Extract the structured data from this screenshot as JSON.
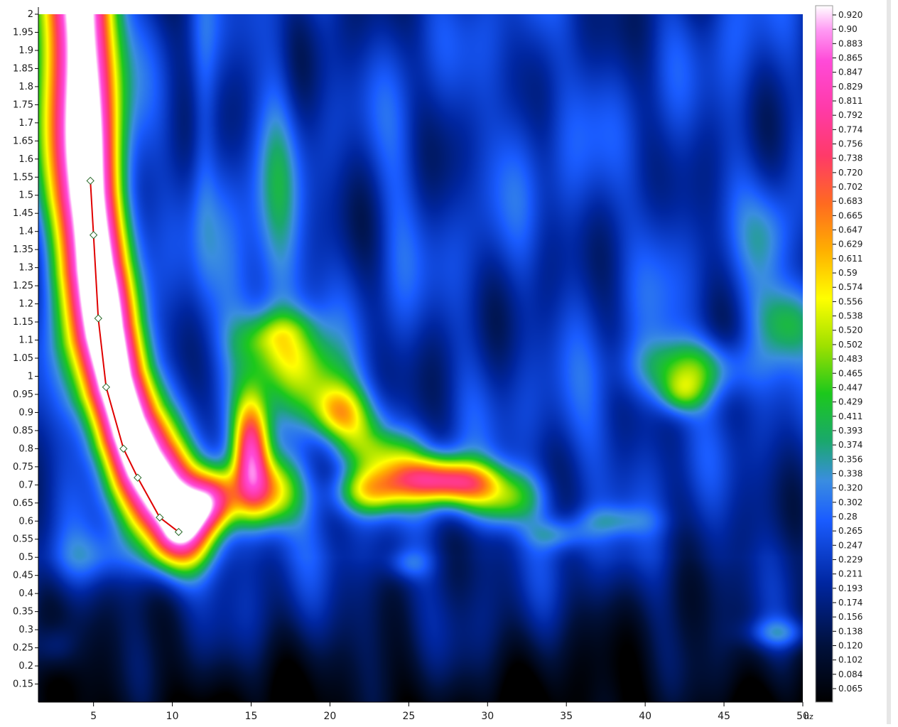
{
  "chart_data": {
    "type": "heatmap",
    "title": "",
    "xlabel": "",
    "ylabel": "",
    "x_unit_label": "hz",
    "xlim": [
      1.5,
      50
    ],
    "ylim": [
      0.1,
      2.0
    ],
    "x_ticks": [
      5,
      10,
      15,
      20,
      25,
      30,
      35,
      40,
      45,
      50
    ],
    "x_tick_labels": [
      "5",
      "10",
      "15",
      "20",
      "25",
      "30",
      "35",
      "40",
      "45",
      "50"
    ],
    "y_ticks": [
      2,
      1.95,
      1.9,
      1.85,
      1.8,
      1.75,
      1.7,
      1.65,
      1.6,
      1.55,
      1.5,
      1.45,
      1.4,
      1.35,
      1.3,
      1.25,
      1.2,
      1.15,
      1.1,
      1.05,
      1,
      0.95,
      0.9,
      0.85,
      0.8,
      0.75,
      0.7,
      0.65,
      0.6,
      0.55,
      0.5,
      0.45,
      0.4,
      0.35,
      0.3,
      0.25,
      0.2,
      0.15
    ],
    "y_tick_labels": [
      "2",
      "1.95",
      "1.9",
      "1.85",
      "1.8",
      "1.75",
      "1.7",
      "1.65",
      "1.6",
      "1.55",
      "1.5",
      "1.45",
      "1.4",
      "1.35",
      "1.3",
      "1.25",
      "1.2",
      "1.15",
      "1.1",
      "1.05",
      "1",
      "0.95",
      "0.9",
      "0.85",
      "0.8",
      "0.75",
      "0.7",
      "0.65",
      "0.6",
      "0.55",
      "0.5",
      "0.45",
      "0.4",
      "0.35",
      "0.3",
      "0.25",
      "0.2",
      "0.15"
    ],
    "colorbar": {
      "range": [
        0.05,
        0.93
      ],
      "labels": [
        "0.920",
        "0.90",
        "0.883",
        "0.865",
        "0.847",
        "0.829",
        "0.811",
        "0.792",
        "0.774",
        "0.756",
        "0.738",
        "0.720",
        "0.702",
        "0.683",
        "0.665",
        "0.647",
        "0.629",
        "0.611",
        "0.59",
        "0.574",
        "0.556",
        "0.538",
        "0.520",
        "0.502",
        "0.483",
        "0.465",
        "0.447",
        "0.429",
        "0.411",
        "0.393",
        "0.374",
        "0.356",
        "0.338",
        "0.320",
        "0.302",
        "0.28",
        "0.265",
        "0.247",
        "0.229",
        "0.211",
        "0.193",
        "0.174",
        "0.156",
        "0.138",
        "0.120",
        "0.102",
        "0.084",
        "0.065"
      ],
      "colors": [
        {
          "value": 0.05,
          "color": "#000000"
        },
        {
          "value": 0.12,
          "color": "#00103a"
        },
        {
          "value": 0.2,
          "color": "#0026a0"
        },
        {
          "value": 0.28,
          "color": "#1a5cff"
        },
        {
          "value": 0.33,
          "color": "#3a8de0"
        },
        {
          "value": 0.38,
          "color": "#1aa86c"
        },
        {
          "value": 0.44,
          "color": "#1cc81c"
        },
        {
          "value": 0.5,
          "color": "#9ee000"
        },
        {
          "value": 0.56,
          "color": "#ffff00"
        },
        {
          "value": 0.62,
          "color": "#ffb000"
        },
        {
          "value": 0.68,
          "color": "#ff6a20"
        },
        {
          "value": 0.74,
          "color": "#ff3a68"
        },
        {
          "value": 0.8,
          "color": "#ff3aa8"
        },
        {
          "value": 0.86,
          "color": "#ff4ad8"
        },
        {
          "value": 0.9,
          "color": "#ff9cf4"
        },
        {
          "value": 0.93,
          "color": "#ffffff"
        }
      ]
    },
    "picked_curve": {
      "color": "#e00000",
      "points": [
        {
          "x": 4.8,
          "y": 1.54
        },
        {
          "x": 5.0,
          "y": 1.39
        },
        {
          "x": 5.3,
          "y": 1.16
        },
        {
          "x": 5.8,
          "y": 0.97
        },
        {
          "x": 6.9,
          "y": 0.8
        },
        {
          "x": 7.8,
          "y": 0.72
        },
        {
          "x": 9.2,
          "y": 0.61
        },
        {
          "x": 10.4,
          "y": 0.57
        }
      ]
    },
    "energy_features": [
      {
        "kind": "ridge",
        "points": [
          [
            4.0,
            2.0
          ],
          [
            4.3,
            1.75
          ],
          [
            4.6,
            1.5
          ],
          [
            5.0,
            1.3
          ],
          [
            5.6,
            1.12
          ],
          [
            6.3,
            0.98
          ],
          [
            7.2,
            0.86
          ],
          [
            8.2,
            0.76
          ],
          [
            9.3,
            0.67
          ],
          [
            10.3,
            0.6
          ]
        ],
        "amplitude": 0.88,
        "width": 1.6,
        "height": 0.09
      },
      {
        "kind": "ridge",
        "points": [
          [
            4.6,
            1.6
          ],
          [
            5.2,
            1.25
          ],
          [
            6.2,
            1.0
          ],
          [
            7.4,
            0.85
          ]
        ],
        "amplitude": 0.04,
        "width": 0.9,
        "height": 0.1
      },
      {
        "kind": "blob",
        "x": 12.6,
        "y": 0.66,
        "amplitude": 0.45,
        "sx": 1.1,
        "sy": 0.06
      },
      {
        "kind": "blob",
        "x": 15.0,
        "y": 0.8,
        "amplitude": 0.5,
        "sx": 0.8,
        "sy": 0.1
      },
      {
        "kind": "blob",
        "x": 16.0,
        "y": 0.68,
        "amplitude": 0.42,
        "sx": 1.5,
        "sy": 0.07
      },
      {
        "kind": "blob",
        "x": 15.6,
        "y": 1.25,
        "amplitude": 0.12,
        "sx": 2.5,
        "sy": 0.28
      },
      {
        "kind": "ridge",
        "points": [
          [
            17.0,
            1.1
          ],
          [
            19.5,
            0.95
          ],
          [
            22.0,
            0.82
          ],
          [
            25.0,
            0.74
          ],
          [
            28.0,
            0.7
          ],
          [
            31.0,
            0.66
          ]
        ],
        "amplitude": 0.28,
        "width": 1.8,
        "height": 0.055
      },
      {
        "kind": "blob",
        "x": 22.5,
        "y": 0.68,
        "amplitude": 0.3,
        "sx": 1.6,
        "sy": 0.045
      },
      {
        "kind": "blob",
        "x": 27.5,
        "y": 0.71,
        "amplitude": 0.32,
        "sx": 2.2,
        "sy": 0.04
      },
      {
        "kind": "blob",
        "x": 20.5,
        "y": 0.9,
        "amplitude": 0.18,
        "sx": 1.1,
        "sy": 0.05
      },
      {
        "kind": "blob",
        "x": 43.0,
        "y": 1.02,
        "amplitude": 0.25,
        "sx": 2.6,
        "sy": 0.06
      },
      {
        "kind": "blob",
        "x": 42.3,
        "y": 0.95,
        "amplitude": 0.18,
        "sx": 1.0,
        "sy": 0.04
      },
      {
        "kind": "blob",
        "x": 49.0,
        "y": 1.15,
        "amplitude": 0.22,
        "sx": 1.6,
        "sy": 0.08
      },
      {
        "kind": "blob",
        "x": 48.0,
        "y": 1.38,
        "amplitude": 0.12,
        "sx": 1.2,
        "sy": 0.1
      },
      {
        "kind": "blob",
        "x": 34.5,
        "y": 0.56,
        "amplitude": 0.13,
        "sx": 1.4,
        "sy": 0.03
      },
      {
        "kind": "blob",
        "x": 38.0,
        "y": 0.6,
        "amplitude": 0.1,
        "sx": 2.0,
        "sy": 0.03
      },
      {
        "kind": "blob",
        "x": 25.0,
        "y": 0.48,
        "amplitude": 0.1,
        "sx": 1.0,
        "sy": 0.03
      },
      {
        "kind": "blob",
        "x": 48.5,
        "y": 0.29,
        "amplitude": 0.14,
        "sx": 1.5,
        "sy": 0.03
      },
      {
        "kind": "blob",
        "x": 2.6,
        "y": 0.25,
        "amplitude": 0.12,
        "sx": 1.0,
        "sy": 0.05
      },
      {
        "kind": "blob",
        "x": 5.0,
        "y": 0.5,
        "amplitude": 0.08,
        "sx": 2.0,
        "sy": 0.05
      },
      {
        "kind": "blob",
        "x": 12.0,
        "y": 1.7,
        "amplitude": 0.08,
        "sx": 0.6,
        "sy": 0.3
      },
      {
        "kind": "blob",
        "x": 16.8,
        "y": 1.65,
        "amplitude": 0.07,
        "sx": 0.8,
        "sy": 0.35
      },
      {
        "kind": "blob",
        "x": 24.5,
        "y": 1.5,
        "amplitude": 0.06,
        "sx": 1.2,
        "sy": 0.35
      },
      {
        "kind": "blob",
        "x": 29.5,
        "y": 1.6,
        "amplitude": 0.05,
        "sx": 1.0,
        "sy": 0.4
      },
      {
        "kind": "blob",
        "x": 32.5,
        "y": 1.8,
        "amplitude": 0.06,
        "sx": 0.9,
        "sy": 0.35
      },
      {
        "kind": "blob",
        "x": 36.0,
        "y": 1.6,
        "amplitude": 0.05,
        "sx": 1.4,
        "sy": 0.3
      },
      {
        "kind": "blob",
        "x": 46.0,
        "y": 1.9,
        "amplitude": 0.06,
        "sx": 1.4,
        "sy": 0.25
      },
      {
        "kind": "blob",
        "x": 41.0,
        "y": 1.35,
        "amplitude": 0.06,
        "sx": 1.2,
        "sy": 0.3
      },
      {
        "kind": "blob",
        "x": 21.0,
        "y": 0.3,
        "amplitude": 0.04,
        "sx": 6.0,
        "sy": 0.1
      },
      {
        "kind": "blob",
        "x": 36.0,
        "y": 0.85,
        "amplitude": 0.05,
        "sx": 3.0,
        "sy": 0.12
      }
    ],
    "background_level": 0.2
  }
}
